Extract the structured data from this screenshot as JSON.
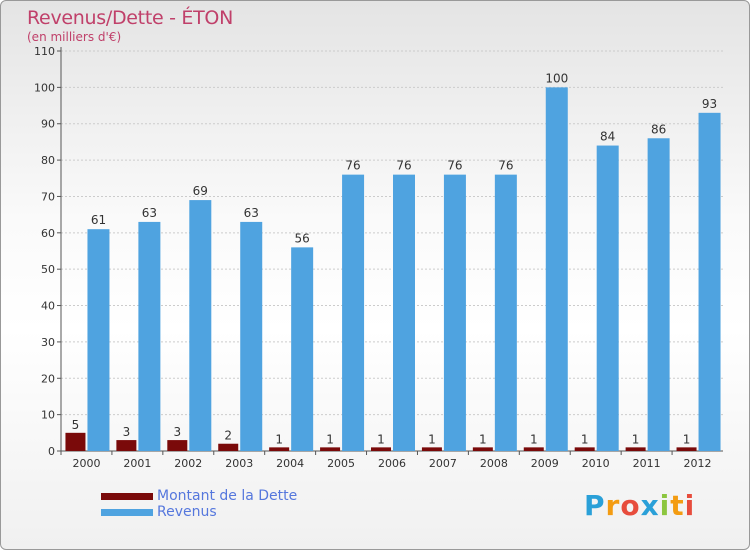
{
  "title": "Revenus/Dette - ÉTON",
  "subtitle": "(en milliers d'€)",
  "logo": {
    "letters": [
      {
        "ch": "P",
        "color": "#2aa0d8"
      },
      {
        "ch": "r",
        "color": "#f39c12"
      },
      {
        "ch": "o",
        "color": "#e74c3c"
      },
      {
        "ch": "x",
        "color": "#2aa0d8"
      },
      {
        "ch": "i",
        "color": "#8cc63f"
      },
      {
        "ch": "t",
        "color": "#f39c12"
      },
      {
        "ch": "i",
        "color": "#e74c3c"
      }
    ]
  },
  "colors": {
    "dette": "#7a0a0a",
    "revenus": "#4fa3e0",
    "axis": "#555555",
    "grid": "#cccccc",
    "legend_text": "#5577dd"
  },
  "chart_data": {
    "type": "bar",
    "title": "Revenus/Dette - ÉTON",
    "subtitle": "(en milliers d'€)",
    "categories": [
      "2000",
      "2001",
      "2002",
      "2003",
      "2004",
      "2005",
      "2006",
      "2007",
      "2008",
      "2009",
      "2010",
      "2011",
      "2012"
    ],
    "series": [
      {
        "name": "Montant de la Dette",
        "values": [
          5,
          3,
          3,
          2,
          1,
          1,
          1,
          1,
          1,
          1,
          1,
          1,
          1
        ]
      },
      {
        "name": "Revenus",
        "values": [
          61,
          63,
          69,
          63,
          56,
          76,
          76,
          76,
          76,
          100,
          84,
          86,
          93
        ]
      }
    ],
    "ylim": [
      0,
      110
    ],
    "yticks": [
      0,
      10,
      20,
      30,
      40,
      50,
      60,
      70,
      80,
      90,
      100,
      110
    ],
    "grid": true,
    "legend_position": "bottom-left"
  }
}
